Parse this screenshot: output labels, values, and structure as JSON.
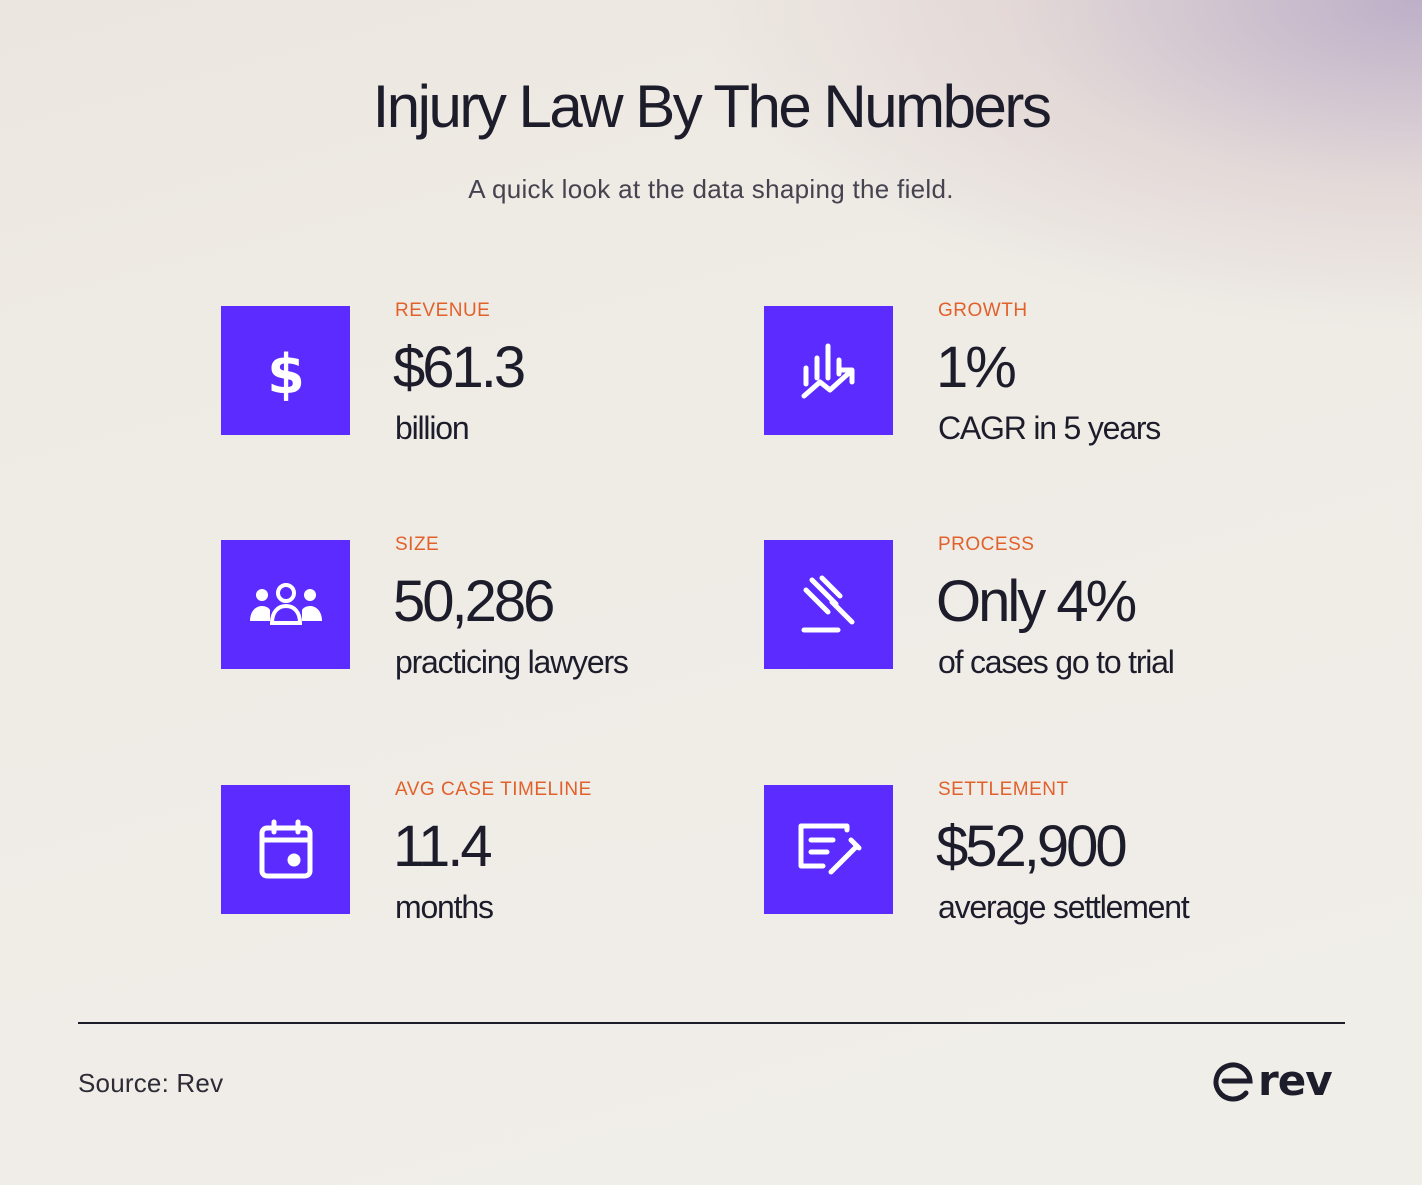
{
  "header": {
    "title": "Injury Law By The Numbers",
    "subtitle": "A quick look at the data shaping the field."
  },
  "stats": [
    {
      "label": "REVENUE",
      "value": "$61.3",
      "description": "billion",
      "icon": "dollar-icon"
    },
    {
      "label": "GROWTH",
      "value": "1%",
      "description": "CAGR in 5 years",
      "icon": "growth-chart-icon"
    },
    {
      "label": "SIZE",
      "value": "50,286",
      "description": "practicing lawyers",
      "icon": "people-group-icon"
    },
    {
      "label": "PROCESS",
      "value": "Only 4%",
      "description": "of cases go to trial",
      "icon": "gavel-icon"
    },
    {
      "label": "AVG CASE TIMELINE",
      "value": "11.4",
      "description": "months",
      "icon": "calendar-icon"
    },
    {
      "label": "SETTLEMENT",
      "value": "$52,900",
      "description": "average settlement",
      "icon": "document-edit-icon"
    }
  ],
  "footer": {
    "source": "Source: Rev",
    "logo_text": "rev"
  },
  "colors": {
    "accent": "#5b2bff",
    "label": "#e2612b",
    "text": "#1d1c2b"
  }
}
